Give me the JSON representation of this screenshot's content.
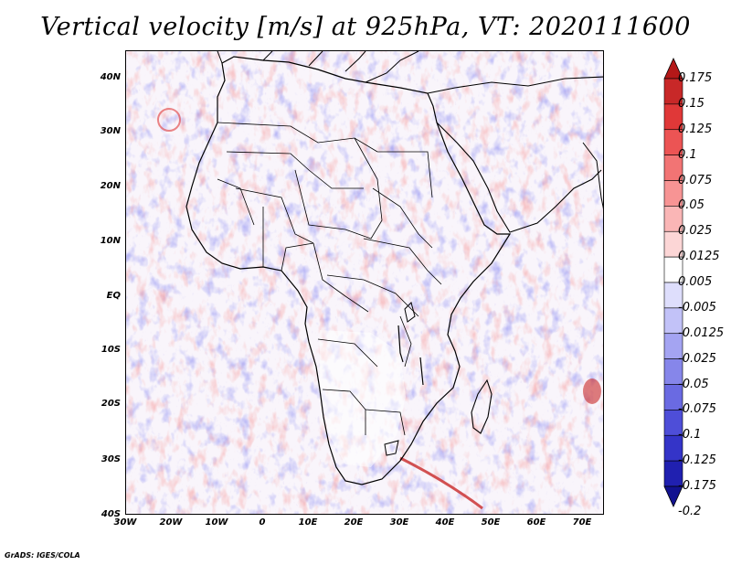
{
  "title": "Vertical velocity [m/s] at 925hPa, VT: 2020111600",
  "credit": "GrADS: IGES/COLA",
  "map": {
    "lat_labels": [
      "40N",
      "30N",
      "20N",
      "10N",
      "EQ",
      "10S",
      "20S",
      "30S",
      "40S"
    ],
    "lon_labels": [
      "30W",
      "20W",
      "10W",
      "0",
      "10E",
      "20E",
      "30E",
      "40E",
      "50E",
      "60E",
      "70E"
    ],
    "lat_range": [
      -40,
      45
    ],
    "lon_range": [
      -30,
      75
    ],
    "field_description_colors": {
      "positive": "#e84a4a",
      "negative": "#4040e0",
      "land_outline": "#000000"
    }
  },
  "legend": {
    "levels": [
      "0.175",
      "0.15",
      "0.125",
      "0.1",
      "0.075",
      "0.05",
      "0.025",
      "0.0125",
      "0.005",
      "-0.005",
      "-0.0125",
      "-0.025",
      "-0.05",
      "-0.075",
      "-0.1",
      "-0.125",
      "-0.175",
      "-0.2"
    ],
    "colors": [
      "#b41818",
      "#c82828",
      "#e03838",
      "#ec5454",
      "#f27474",
      "#f79494",
      "#fab6b6",
      "#fcd6d6",
      "#ffffff",
      "#dedefc",
      "#c2c2f8",
      "#a4a4f2",
      "#8686ea",
      "#6a6ae2",
      "#4e4ed8",
      "#3434c8",
      "#2020b0",
      "#121290"
    ]
  }
}
